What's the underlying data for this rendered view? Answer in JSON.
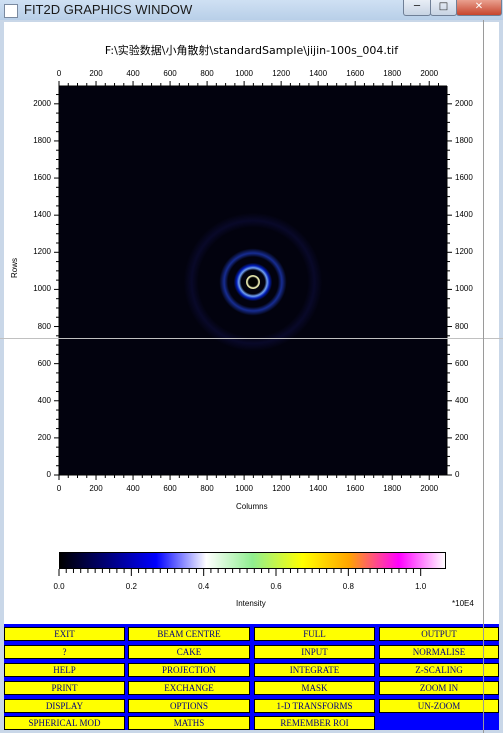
{
  "window": {
    "title": "FIT2D GRAPHICS WINDOW",
    "min_label": "─",
    "max_label": "□",
    "close_label": "✕"
  },
  "image_title": "F:\\实验数据\\小角散射\\standardSample\\jijin-100s_004.tif",
  "axes": {
    "x_title": "Columns",
    "y_title": "Rows",
    "x_ticks": [
      "0",
      "200",
      "400",
      "600",
      "800",
      "1000",
      "1200",
      "1400",
      "1600",
      "1800",
      "2000"
    ],
    "y_ticks": [
      "0",
      "200",
      "400",
      "600",
      "800",
      "1000",
      "1200",
      "1400",
      "1600",
      "1800",
      "2000"
    ]
  },
  "colorbar": {
    "title": "Intensity",
    "scale_label": "*10E4",
    "ticks": [
      "0.0",
      "0.2",
      "0.4",
      "0.6",
      "0.8",
      "1.0"
    ],
    "colors": [
      "#000000",
      "#000080",
      "#0000ff",
      "#ffffff",
      "#90ee90",
      "#ffff00",
      "#ffa500",
      "#ff00ff",
      "#ffffff"
    ]
  },
  "menu": {
    "buttons": [
      [
        "EXIT",
        "BEAM CENTRE",
        "FULL",
        "OUTPUT"
      ],
      [
        "?",
        "CAKE",
        "INPUT",
        "NORMALISE"
      ],
      [
        "HELP",
        "PROJECTION",
        "INTEGRATE",
        "Z-SCALING"
      ],
      [
        "PRINT",
        "EXCHANGE",
        "MASK",
        "ZOOM IN"
      ],
      [
        "DISPLAY",
        "OPTIONS",
        "1-D TRANSFORMS",
        "UN-ZOOM"
      ],
      [
        "SPHERICAL MOD",
        "MATHS",
        "REMEMBER ROI"
      ]
    ]
  }
}
